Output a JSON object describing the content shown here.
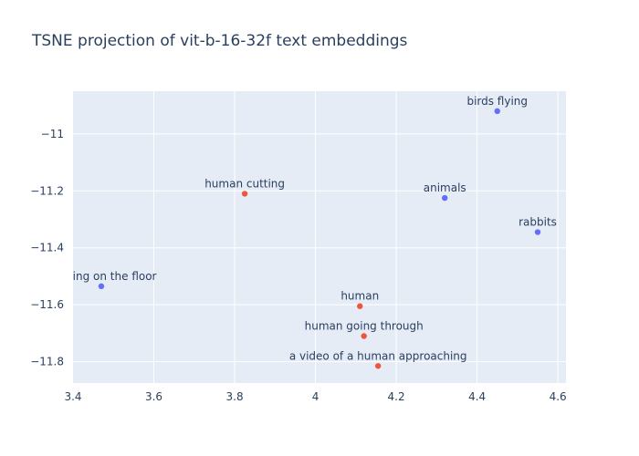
{
  "chart_data": {
    "type": "scatter",
    "title": "TSNE projection of vit-b-16-32f text embeddings",
    "xlabel": "",
    "ylabel": "",
    "xlim": [
      3.4,
      4.62
    ],
    "ylim": [
      -11.875,
      -10.85
    ],
    "grid": true,
    "x_ticks": [
      3.4,
      3.6,
      3.8,
      4,
      4.2,
      4.4,
      4.6
    ],
    "x_tick_labels": [
      "3.4",
      "3.6",
      "3.8",
      "4",
      "4.2",
      "4.4",
      "4.6"
    ],
    "y_ticks": [
      -11,
      -11.2,
      -11.4,
      -11.6,
      -11.8
    ],
    "y_tick_labels": [
      "−11",
      "−11.2",
      "−11.4",
      "−11.6",
      "−11.8"
    ],
    "series": [
      {
        "color": "#636efa",
        "points": [
          {
            "x": 4.45,
            "y": -10.92,
            "label": "birds flying"
          },
          {
            "x": 4.32,
            "y": -11.225,
            "label": "animals"
          },
          {
            "x": 4.55,
            "y": -11.345,
            "label": "rabbits"
          },
          {
            "x": 3.47,
            "y": -11.535,
            "label": "g laying on the floor"
          }
        ]
      },
      {
        "color": "#ef553b",
        "points": [
          {
            "x": 3.825,
            "y": -11.21,
            "label": "human cutting"
          },
          {
            "x": 4.11,
            "y": -11.605,
            "label": "human"
          },
          {
            "x": 4.12,
            "y": -11.71,
            "label": "human going through"
          },
          {
            "x": 4.155,
            "y": -11.815,
            "label": "a video of a human approaching"
          }
        ]
      }
    ],
    "colors": {
      "plot_background": "#e5ecf6",
      "grid": "#ffffff",
      "text": "#2a3f5f"
    }
  }
}
